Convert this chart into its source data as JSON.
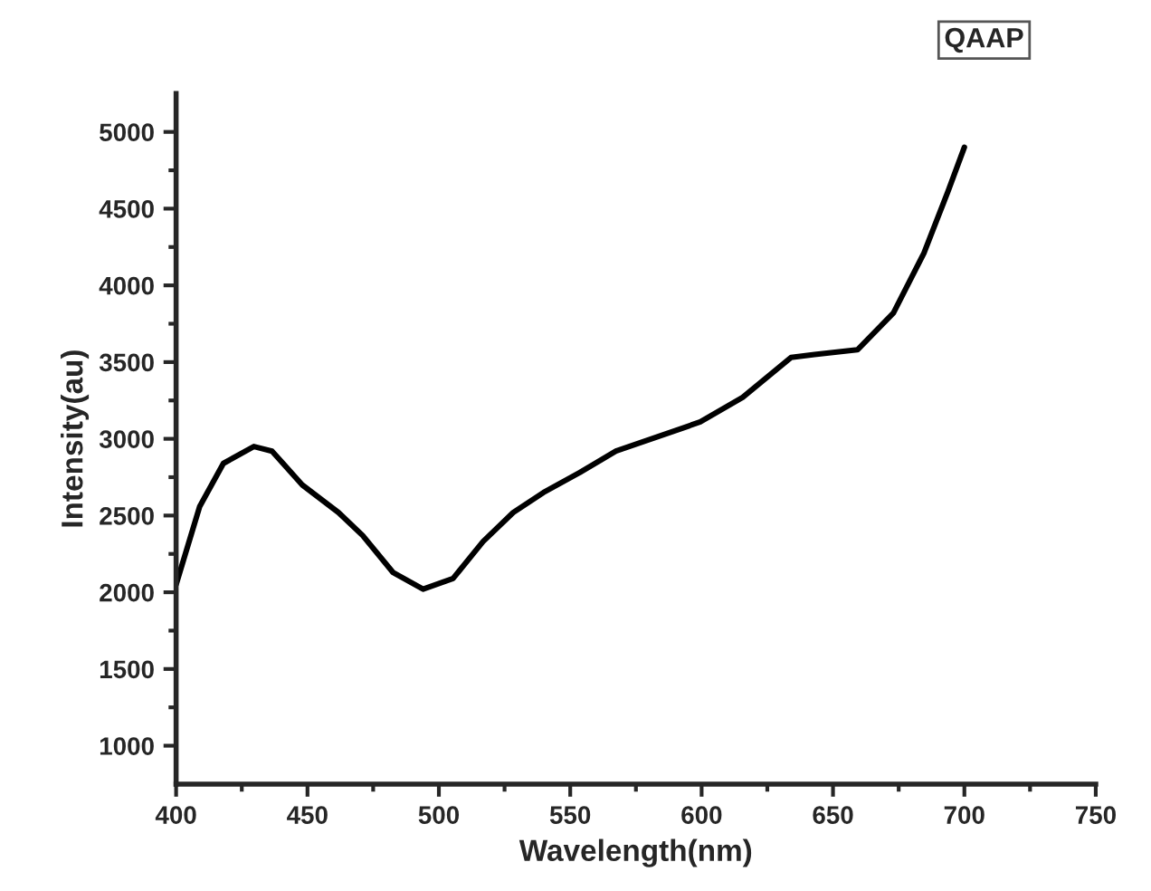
{
  "chart_data": {
    "type": "line",
    "xlabel": "Wavelength(nm)",
    "ylabel": "Intensity(au)",
    "annotations": [
      "QAAP"
    ],
    "x": [
      400,
      409,
      418,
      429.6,
      436.5,
      448,
      461.8,
      471,
      482.5,
      494,
      505.4,
      516.8,
      528.3,
      539.8,
      553.6,
      567.4,
      599.5,
      615.6,
      634,
      643,
      659.3,
      673,
      684.6,
      693.7,
      700
    ],
    "series": [
      {
        "color": "#000000",
        "values": [
          2050,
          2560,
          2840,
          2950,
          2920,
          2700,
          2520,
          2370,
          2130,
          2020,
          2090,
          2330,
          2520,
          2650,
          2780,
          2920,
          3110,
          3270,
          3530,
          3550,
          3580,
          3820,
          4210,
          4610,
          4900
        ]
      }
    ],
    "xlim": [
      400,
      750
    ],
    "xticks": [
      400,
      {
        "value": 425,
        "label": null
      },
      450,
      {
        "value": 475,
        "label": null
      },
      500,
      {
        "value": 525,
        "label": null
      },
      550,
      {
        "value": 575,
        "label": null
      },
      600,
      {
        "value": 625,
        "label": null
      },
      650,
      {
        "value": 675,
        "label": null
      },
      700,
      {
        "value": 725,
        "label": null
      },
      750
    ],
    "ylim": [
      750,
      5250
    ],
    "yticks": [
      1000,
      {
        "value": 1250,
        "label": null
      },
      1500,
      {
        "value": 1750,
        "label": null
      },
      2000,
      {
        "value": 2250,
        "label": null
      },
      2500,
      {
        "value": 2750,
        "label": null
      },
      3000,
      {
        "value": 3250,
        "label": null
      },
      3500,
      {
        "value": 3750,
        "label": null
      },
      4000,
      {
        "value": 4250,
        "label": null
      },
      4500,
      {
        "value": 4750,
        "label": null
      },
      5000
    ],
    "grid": false,
    "legend": false,
    "marker": "none",
    "line_style": "solid"
  }
}
